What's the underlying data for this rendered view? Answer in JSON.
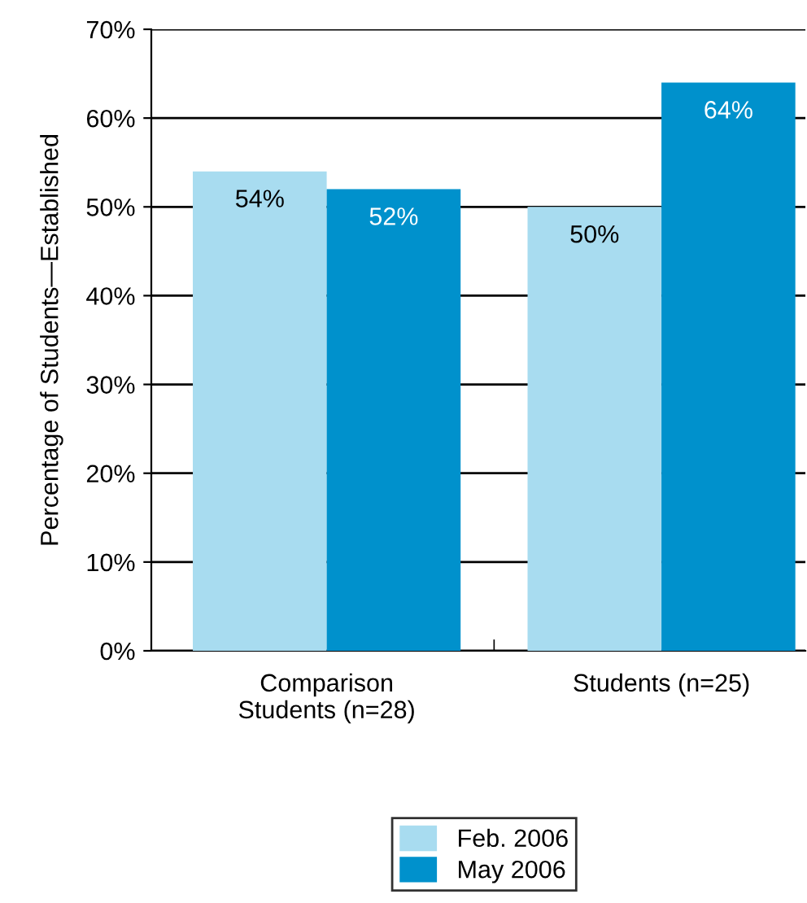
{
  "chart_data": {
    "type": "bar",
    "ylabel": "Percentage of Students—Established",
    "categories": [
      "Comparison\nStudents (n=28)",
      "Students (n=25)"
    ],
    "series": [
      {
        "name": "Feb. 2006",
        "color": "#a8dcf0",
        "values": [
          54,
          50
        ]
      },
      {
        "name": "May 2006",
        "color": "#0091cc",
        "values": [
          52,
          64
        ]
      }
    ],
    "ylim": [
      0,
      70
    ],
    "yticks": [
      {
        "value": 0,
        "label": "0%"
      },
      {
        "value": 10,
        "label": "10%"
      },
      {
        "value": 20,
        "label": "20%"
      },
      {
        "value": 30,
        "label": "30%"
      },
      {
        "value": 40,
        "label": "40%"
      },
      {
        "value": 50,
        "label": "50%"
      },
      {
        "value": 60,
        "label": "60%"
      },
      {
        "value": 70,
        "label": "70%"
      }
    ],
    "grid": "y",
    "legend": "bottom",
    "value_labels": [
      [
        "54%",
        "50%"
      ],
      [
        "52%",
        "64%"
      ]
    ]
  }
}
